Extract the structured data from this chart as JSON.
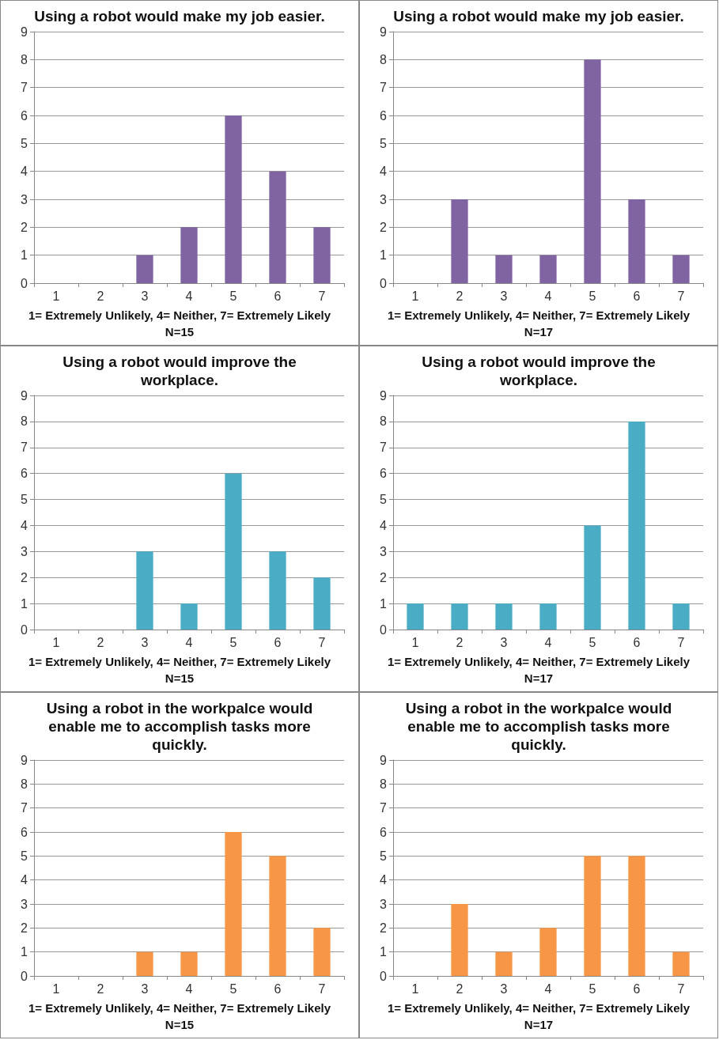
{
  "chart_data": [
    {
      "type": "bar",
      "title": "Using a robot would make my job easier.",
      "xlabel": "1= Extremely Unlikely, 4= Neither, 7= Extremely Likely",
      "annotations": [
        "N=15"
      ],
      "categories": [
        "1",
        "2",
        "3",
        "4",
        "5",
        "6",
        "7"
      ],
      "values": [
        0,
        0,
        1,
        2,
        6,
        4,
        2
      ],
      "color": "#8064a2",
      "ylim": [
        0,
        9
      ],
      "yticks": [
        0,
        1,
        2,
        3,
        4,
        5,
        6,
        7,
        8,
        9
      ],
      "grid": "y"
    },
    {
      "type": "bar",
      "title": "Using a robot would make my job easier.",
      "xlabel": "1= Extremely Unlikely, 4= Neither, 7= Extremely Likely",
      "annotations": [
        "N=17"
      ],
      "categories": [
        "1",
        "2",
        "3",
        "4",
        "5",
        "6",
        "7"
      ],
      "values": [
        0,
        3,
        1,
        1,
        8,
        3,
        1
      ],
      "color": "#8064a2",
      "ylim": [
        0,
        9
      ],
      "yticks": [
        0,
        1,
        2,
        3,
        4,
        5,
        6,
        7,
        8,
        9
      ],
      "grid": "y"
    },
    {
      "type": "bar",
      "title": "Using a robot would improve the workplace.",
      "xlabel": "1= Extremely Unlikely, 4= Neither, 7= Extremely Likely",
      "annotations": [
        "N=15"
      ],
      "categories": [
        "1",
        "2",
        "3",
        "4",
        "5",
        "6",
        "7"
      ],
      "values": [
        0,
        0,
        3,
        1,
        6,
        3,
        2
      ],
      "color": "#4bacc6",
      "ylim": [
        0,
        9
      ],
      "yticks": [
        0,
        1,
        2,
        3,
        4,
        5,
        6,
        7,
        8,
        9
      ],
      "grid": "y"
    },
    {
      "type": "bar",
      "title": "Using a robot would improve the workplace.",
      "xlabel": "1= Extremely Unlikely, 4= Neither, 7= Extremely Likely",
      "annotations": [
        "N=17"
      ],
      "categories": [
        "1",
        "2",
        "3",
        "4",
        "5",
        "6",
        "7"
      ],
      "values": [
        1,
        1,
        1,
        1,
        4,
        8,
        1
      ],
      "color": "#4bacc6",
      "ylim": [
        0,
        9
      ],
      "yticks": [
        0,
        1,
        2,
        3,
        4,
        5,
        6,
        7,
        8,
        9
      ],
      "grid": "y"
    },
    {
      "type": "bar",
      "title": "Using a robot in the workpalce would enable me to accomplish tasks more quickly.",
      "xlabel": "1= Extremely Unlikely, 4= Neither, 7= Extremely Likely",
      "annotations": [
        "N=15"
      ],
      "categories": [
        "1",
        "2",
        "3",
        "4",
        "5",
        "6",
        "7"
      ],
      "values": [
        0,
        0,
        1,
        1,
        6,
        5,
        2
      ],
      "color": "#f79646",
      "ylim": [
        0,
        9
      ],
      "yticks": [
        0,
        1,
        2,
        3,
        4,
        5,
        6,
        7,
        8,
        9
      ],
      "grid": "y"
    },
    {
      "type": "bar",
      "title": "Using a robot in the workpalce would enable me to accomplish tasks more quickly.",
      "xlabel": "1= Extremely Unlikely, 4= Neither, 7= Extremely Likely",
      "annotations": [
        "N=17"
      ],
      "categories": [
        "1",
        "2",
        "3",
        "4",
        "5",
        "6",
        "7"
      ],
      "values": [
        0,
        3,
        1,
        2,
        5,
        5,
        1
      ],
      "color": "#f79646",
      "ylim": [
        0,
        9
      ],
      "yticks": [
        0,
        1,
        2,
        3,
        4,
        5,
        6,
        7,
        8,
        9
      ],
      "grid": "y"
    }
  ]
}
